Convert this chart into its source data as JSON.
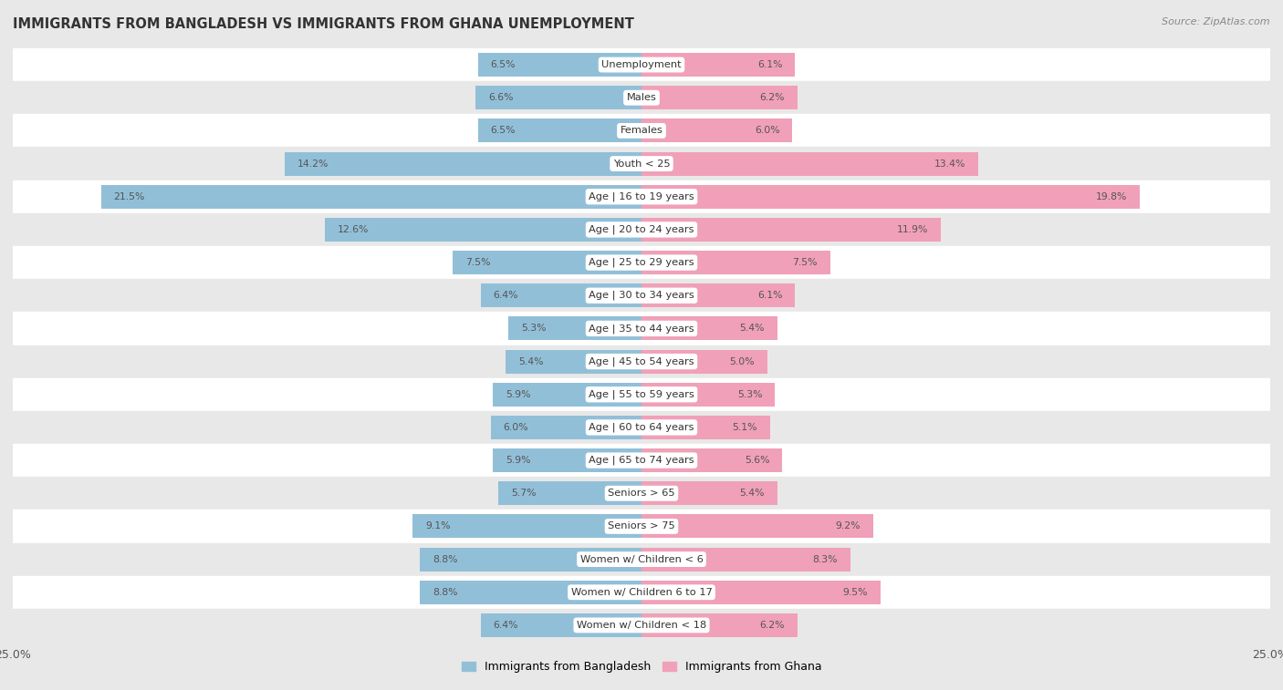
{
  "title": "IMMIGRANTS FROM BANGLADESH VS IMMIGRANTS FROM GHANA UNEMPLOYMENT",
  "source": "Source: ZipAtlas.com",
  "categories": [
    "Unemployment",
    "Males",
    "Females",
    "Youth < 25",
    "Age | 16 to 19 years",
    "Age | 20 to 24 years",
    "Age | 25 to 29 years",
    "Age | 30 to 34 years",
    "Age | 35 to 44 years",
    "Age | 45 to 54 years",
    "Age | 55 to 59 years",
    "Age | 60 to 64 years",
    "Age | 65 to 74 years",
    "Seniors > 65",
    "Seniors > 75",
    "Women w/ Children < 6",
    "Women w/ Children 6 to 17",
    "Women w/ Children < 18"
  ],
  "bangladesh_values": [
    6.5,
    6.6,
    6.5,
    14.2,
    21.5,
    12.6,
    7.5,
    6.4,
    5.3,
    5.4,
    5.9,
    6.0,
    5.9,
    5.7,
    9.1,
    8.8,
    8.8,
    6.4
  ],
  "ghana_values": [
    6.1,
    6.2,
    6.0,
    13.4,
    19.8,
    11.9,
    7.5,
    6.1,
    5.4,
    5.0,
    5.3,
    5.1,
    5.6,
    5.4,
    9.2,
    8.3,
    9.5,
    6.2
  ],
  "bangladesh_color": "#92bfd8",
  "ghana_color": "#f0a0b8",
  "row_color_light": "#ffffff",
  "row_color_dark": "#e8e8e8",
  "background_color": "#e8e8e8",
  "xlim": 25.0,
  "legend_bangladesh": "Immigrants from Bangladesh",
  "legend_ghana": "Immigrants from Ghana"
}
